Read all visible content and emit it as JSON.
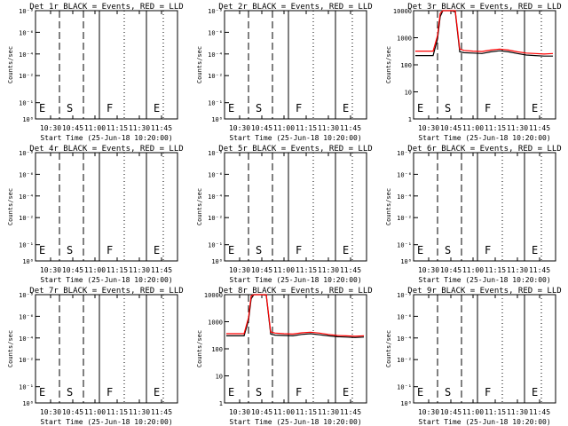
{
  "common": {
    "ylabel": "Counts/sec",
    "xlabel": "Start Time (25-Jun-18 10:20:00)",
    "x_range_minutes": [
      10.33,
      11.93
    ],
    "x_ticks": [
      "10:30",
      "10:45",
      "11:00",
      "11:15",
      "11:30",
      "11:45"
    ],
    "tick_hours": [
      10.5,
      10.75,
      11.0,
      11.25,
      11.5,
      11.75
    ],
    "marker_lines": [
      {
        "label": "E",
        "x_hours": 10.33,
        "style": "solid"
      },
      {
        "label": "S",
        "x_hours": 10.6,
        "style": "dashed"
      },
      {
        "label": "",
        "x_hours": 10.87,
        "style": "dashed"
      },
      {
        "label": "F",
        "x_hours": 11.05,
        "style": "solid"
      },
      {
        "label": "",
        "x_hours": 11.33,
        "style": "dotted"
      },
      {
        "label": "E",
        "x_hours": 11.58,
        "style": "solid"
      },
      {
        "label": "",
        "x_hours": 11.77,
        "style": "dotted"
      }
    ],
    "series_colors": {
      "events": "#000000",
      "lld": "#ff0000"
    }
  },
  "panels": [
    {
      "title": "Det 1r BLACK = Events, RED = LLD",
      "yaxis": "empty"
    },
    {
      "title": "Det 2r BLACK = Events, RED = LLD",
      "yaxis": "empty"
    },
    {
      "title": "Det 3r BLACK = Events, RED = LLD",
      "yaxis": "log"
    },
    {
      "title": "Det 4r BLACK = Events, RED = LLD",
      "yaxis": "empty"
    },
    {
      "title": "Det 5r BLACK = Events, RED = LLD",
      "yaxis": "empty"
    },
    {
      "title": "Det 6r BLACK = Events, RED = LLD",
      "yaxis": "empty"
    },
    {
      "title": "Det 7r BLACK = Events, RED = LLD",
      "yaxis": "empty"
    },
    {
      "title": "Det 8r BLACK = Events, RED = LLD",
      "yaxis": "log"
    },
    {
      "title": "Det 9r BLACK = Events, RED = LLD",
      "yaxis": "empty"
    }
  ],
  "empty_yticks": [
    "10⁻⁸",
    "10⁻⁶",
    "10⁻⁴",
    "10⁻²",
    "10⁻¹",
    "10⁰"
  ],
  "log_yticks": [
    "10000",
    "1000",
    "100",
    "10",
    "1"
  ],
  "chart_data": [
    {
      "type": "line",
      "panel": 3,
      "ylim": [
        1,
        10000
      ],
      "series": [
        {
          "name": "Events",
          "x": [
            10.35,
            10.55,
            10.6,
            10.63,
            10.66,
            10.7,
            10.75,
            10.8,
            10.85,
            10.9,
            11.0,
            11.1,
            11.2,
            11.3,
            11.4,
            11.5,
            11.6,
            11.7,
            11.8,
            11.9
          ],
          "values": [
            220,
            220,
            900,
            6000,
            10000,
            10000,
            10000,
            9000,
            300,
            280,
            270,
            260,
            300,
            330,
            300,
            260,
            230,
            220,
            210,
            210
          ]
        },
        {
          "name": "LLD",
          "x": [
            10.35,
            10.55,
            10.6,
            10.63,
            10.66,
            10.7,
            10.75,
            10.8,
            10.85,
            10.9,
            11.0,
            11.1,
            11.2,
            11.3,
            11.4,
            11.5,
            11.6,
            11.7,
            11.8,
            11.9
          ],
          "values": [
            320,
            320,
            1200,
            8000,
            10000,
            10000,
            10000,
            10000,
            380,
            340,
            320,
            310,
            350,
            380,
            350,
            300,
            270,
            260,
            250,
            260
          ]
        }
      ]
    },
    {
      "type": "line",
      "panel": 8,
      "ylim": [
        1,
        10000
      ],
      "series": [
        {
          "name": "Events",
          "x": [
            10.35,
            10.55,
            10.6,
            10.63,
            10.66,
            10.7,
            10.75,
            10.8,
            10.85,
            10.9,
            11.0,
            11.1,
            11.2,
            11.3,
            11.4,
            11.5,
            11.6,
            11.7,
            11.8,
            11.9
          ],
          "values": [
            300,
            300,
            1100,
            7000,
            10000,
            10000,
            10000,
            9500,
            350,
            320,
            310,
            300,
            340,
            360,
            330,
            300,
            280,
            270,
            260,
            270
          ]
        },
        {
          "name": "LLD",
          "x": [
            10.35,
            10.55,
            10.6,
            10.63,
            10.66,
            10.7,
            10.75,
            10.8,
            10.85,
            10.9,
            11.0,
            11.1,
            11.2,
            11.3,
            11.4,
            11.5,
            11.6,
            11.7,
            11.8,
            11.9
          ],
          "values": [
            360,
            360,
            1400,
            9000,
            10000,
            10000,
            10000,
            10000,
            420,
            380,
            360,
            350,
            390,
            410,
            380,
            340,
            310,
            300,
            290,
            300
          ]
        }
      ]
    }
  ]
}
